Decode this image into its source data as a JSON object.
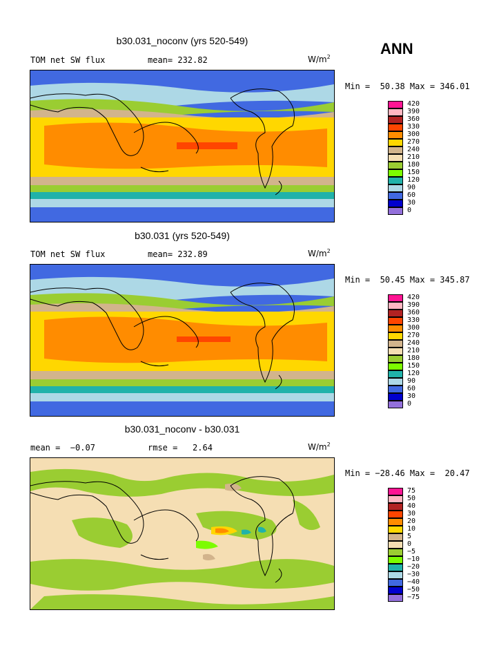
{
  "header": {
    "season": "ANN"
  },
  "panels": [
    {
      "id": "p1",
      "title": "b30.031_noconv (yrs 520-549)",
      "left_label": "TOM net SW flux",
      "stat1": "mean= 232.82",
      "stat2": "",
      "units": "W/m",
      "units_sup": "2",
      "minmax": "Min =  50.38 Max = 346.01",
      "colorbar": {
        "levels": [
          "420",
          "390",
          "360",
          "330",
          "300",
          "270",
          "240",
          "210",
          "180",
          "150",
          "120",
          "90",
          "60",
          "30",
          "0"
        ],
        "colors": [
          "#ff1493",
          "#ffb6c1",
          "#b22222",
          "#ff4500",
          "#ff8c00",
          "#ffd700",
          "#d2b48c",
          "#f5deb3",
          "#9acd32",
          "#7cfc00",
          "#20b2aa",
          "#add8e6",
          "#4169e1",
          "#0000cd",
          "#9370db"
        ]
      }
    },
    {
      "id": "p2",
      "title": "b30.031 (yrs 520-549)",
      "left_label": "TOM net SW flux",
      "stat1": "mean= 232.89",
      "stat2": "",
      "units": "W/m",
      "units_sup": "2",
      "minmax": "Min =  50.45 Max = 345.87",
      "colorbar": {
        "levels": [
          "420",
          "390",
          "360",
          "330",
          "300",
          "270",
          "240",
          "210",
          "180",
          "150",
          "120",
          "90",
          "60",
          "30",
          "0"
        ],
        "colors": [
          "#ff1493",
          "#ffb6c1",
          "#b22222",
          "#ff4500",
          "#ff8c00",
          "#ffd700",
          "#d2b48c",
          "#f5deb3",
          "#9acd32",
          "#7cfc00",
          "#20b2aa",
          "#add8e6",
          "#4169e1",
          "#0000cd",
          "#9370db"
        ]
      }
    },
    {
      "id": "p3",
      "title": "b30.031_noconv - b30.031",
      "left_label": "mean =  −0.07",
      "stat1": "rmse =   2.64",
      "stat2": "",
      "units": "W/m",
      "units_sup": "2",
      "minmax": "Min = −28.46 Max =  20.47",
      "colorbar": {
        "levels": [
          "75",
          "50",
          "40",
          "30",
          "20",
          "10",
          "5",
          "0",
          "−5",
          "−10",
          "−20",
          "−30",
          "−40",
          "−50",
          "−75"
        ],
        "colors": [
          "#ff1493",
          "#ffb6c1",
          "#b22222",
          "#ff4500",
          "#ff8c00",
          "#ffd700",
          "#d2b48c",
          "#f5deb3",
          "#9acd32",
          "#7cfc00",
          "#20b2aa",
          "#add8e6",
          "#4169e1",
          "#0000cd",
          "#9370db"
        ]
      }
    }
  ]
}
